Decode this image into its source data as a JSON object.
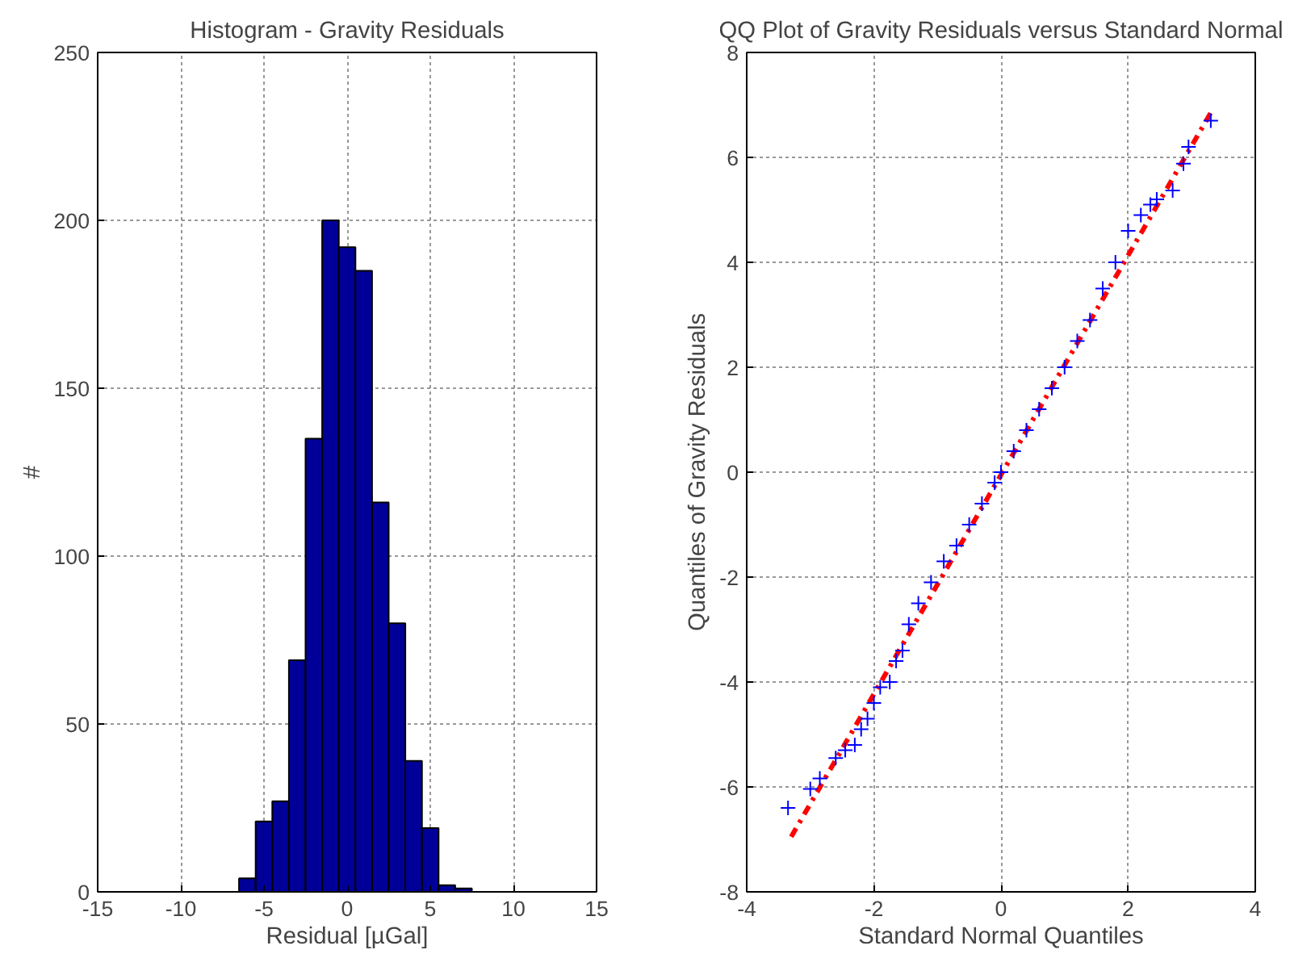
{
  "chart_data": [
    {
      "type": "histogram",
      "title": "Histogram - Gravity Residuals",
      "xlabel": "Residual [µGal]",
      "ylabel": "#",
      "bins": [
        -6.5,
        -5.5,
        -4.5,
        -3.5,
        -2.5,
        -1.5,
        -0.5,
        0.5,
        1.5,
        2.5,
        3.5,
        4.5,
        5.5,
        6.5,
        7.5
      ],
      "values": [
        4,
        21,
        27,
        69,
        135,
        200,
        192,
        185,
        116,
        80,
        39,
        19,
        2,
        1
      ],
      "color": "#000099",
      "xlim": [
        -15,
        15
      ],
      "ylim": [
        0,
        250
      ],
      "xticks": [
        -15,
        -10,
        -5,
        0,
        5,
        10,
        15
      ],
      "yticks": [
        0,
        50,
        100,
        150,
        200,
        250
      ],
      "grid": true
    },
    {
      "type": "scatter",
      "title": "QQ Plot of Gravity Residuals versus Standard Normal",
      "xlabel": "Standard Normal Quantiles",
      "ylabel": "Quantiles of Gravity Residuals",
      "xlim": [
        -4,
        4
      ],
      "ylim": [
        -8,
        8
      ],
      "xticks": [
        -4,
        -2,
        0,
        2,
        4
      ],
      "yticks": [
        -8,
        -6,
        -4,
        -2,
        0,
        2,
        4,
        6,
        8
      ],
      "grid": true,
      "series": [
        {
          "type": "scatter",
          "color": "#0000ff",
          "marker": "cross",
          "x": [
            -3.35,
            -3.0,
            -2.85,
            -2.6,
            -2.45,
            -2.3,
            -2.2,
            -2.1,
            -2.0,
            -1.9,
            -1.75,
            -1.65,
            -1.55,
            -1.45,
            -1.3,
            -1.1,
            -0.9,
            -0.7,
            -0.5,
            -0.3,
            -0.1,
            0.0,
            0.2,
            0.4,
            0.6,
            0.8,
            1.0,
            1.2,
            1.4,
            1.6,
            1.8,
            2.0,
            2.2,
            2.35,
            2.45,
            2.7,
            2.87,
            2.95,
            3.3
          ],
          "values": [
            -6.4,
            -6.04,
            -5.84,
            -5.45,
            -5.3,
            -5.2,
            -4.9,
            -4.7,
            -4.4,
            -4.1,
            -4.0,
            -3.6,
            -3.4,
            -2.9,
            -2.5,
            -2.1,
            -1.7,
            -1.4,
            -1.0,
            -0.6,
            -0.2,
            0.0,
            0.4,
            0.8,
            1.2,
            1.6,
            2.0,
            2.5,
            2.9,
            3.5,
            4.0,
            4.6,
            4.9,
            5.1,
            5.2,
            5.37,
            5.88,
            6.2,
            6.7
          ]
        },
        {
          "type": "line",
          "color": "#ff0000",
          "line_style": "dashed",
          "x": [
            -3.3,
            3.3
          ],
          "values": [
            -6.95,
            6.85
          ]
        }
      ]
    }
  ]
}
